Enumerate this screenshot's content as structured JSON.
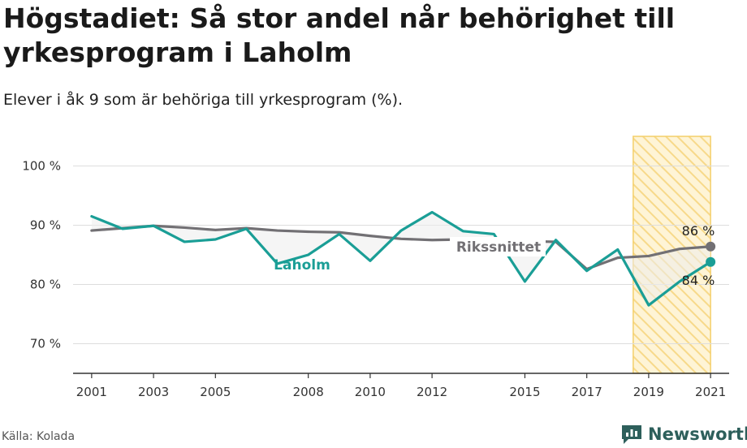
{
  "header": {
    "title": "Högstadiet: Så stor andel når behörighet till yrkesprogram i Laholm",
    "subtitle": "Elever i åk 9 som är behöriga till yrkesprogram (%)."
  },
  "footer": {
    "source": "Källa: Kolada",
    "brand": "Newsworthy"
  },
  "colors": {
    "laholm": "#1a9e96",
    "riket": "#727074",
    "highlight_fill": "#fde7a8",
    "highlight_stroke": "#f4cf6a",
    "brand": "#2d5f5b"
  },
  "chart_data": {
    "type": "line",
    "title": "Högstadiet: Så stor andel når behörighet till yrkesprogram i Laholm",
    "xlabel": "",
    "ylabel": "",
    "ylim": [
      65,
      105
    ],
    "xlim": [
      2000.4,
      2021.6
    ],
    "y_ticks": [
      70,
      80,
      90,
      100
    ],
    "y_tick_labels": [
      "70 %",
      "80 %",
      "90 %",
      "100 %"
    ],
    "x_ticks": [
      2001,
      2003,
      2005,
      2008,
      2010,
      2012,
      2015,
      2017,
      2019,
      2021
    ],
    "x_tick_labels": [
      "2001",
      "2003",
      "2005",
      "2008",
      "2010",
      "2012",
      "2015",
      "2017",
      "2019",
      "2021"
    ],
    "grid": "horizontal",
    "highlight_range": [
      2018.5,
      2021
    ],
    "series": [
      {
        "name": "Laholm",
        "color": "#1a9e96",
        "x": [
          2001,
          2002,
          2003,
          2004,
          2005,
          2006,
          2007,
          2008,
          2009,
          2010,
          2011,
          2012,
          2013,
          2014,
          2015,
          2016,
          2017,
          2018,
          2019,
          2020,
          2021
        ],
        "values": [
          91.5,
          89.4,
          89.9,
          87.2,
          87.6,
          89.4,
          83.5,
          85.0,
          88.5,
          84.0,
          89.1,
          92.2,
          89.0,
          88.5,
          80.5,
          87.5,
          82.3,
          85.9,
          76.5,
          80.5,
          83.8
        ]
      },
      {
        "name": "Rikssnittet",
        "color": "#727074",
        "x": [
          2001,
          2002,
          2003,
          2004,
          2005,
          2006,
          2007,
          2008,
          2009,
          2010,
          2011,
          2012,
          2013,
          2014,
          2015,
          2016,
          2017,
          2018,
          2019,
          2020,
          2021
        ],
        "values": [
          89.1,
          89.5,
          89.9,
          89.6,
          89.2,
          89.5,
          89.1,
          88.9,
          88.8,
          88.2,
          87.7,
          87.5,
          87.6,
          87.4,
          87.3,
          87.2,
          82.6,
          84.5,
          84.8,
          86.0,
          86.4
        ]
      }
    ],
    "series_labels": {
      "laholm": "Laholm",
      "riket": "Rikssnittet"
    },
    "end_labels": {
      "riket": "86 %",
      "laholm": "84 %"
    }
  }
}
